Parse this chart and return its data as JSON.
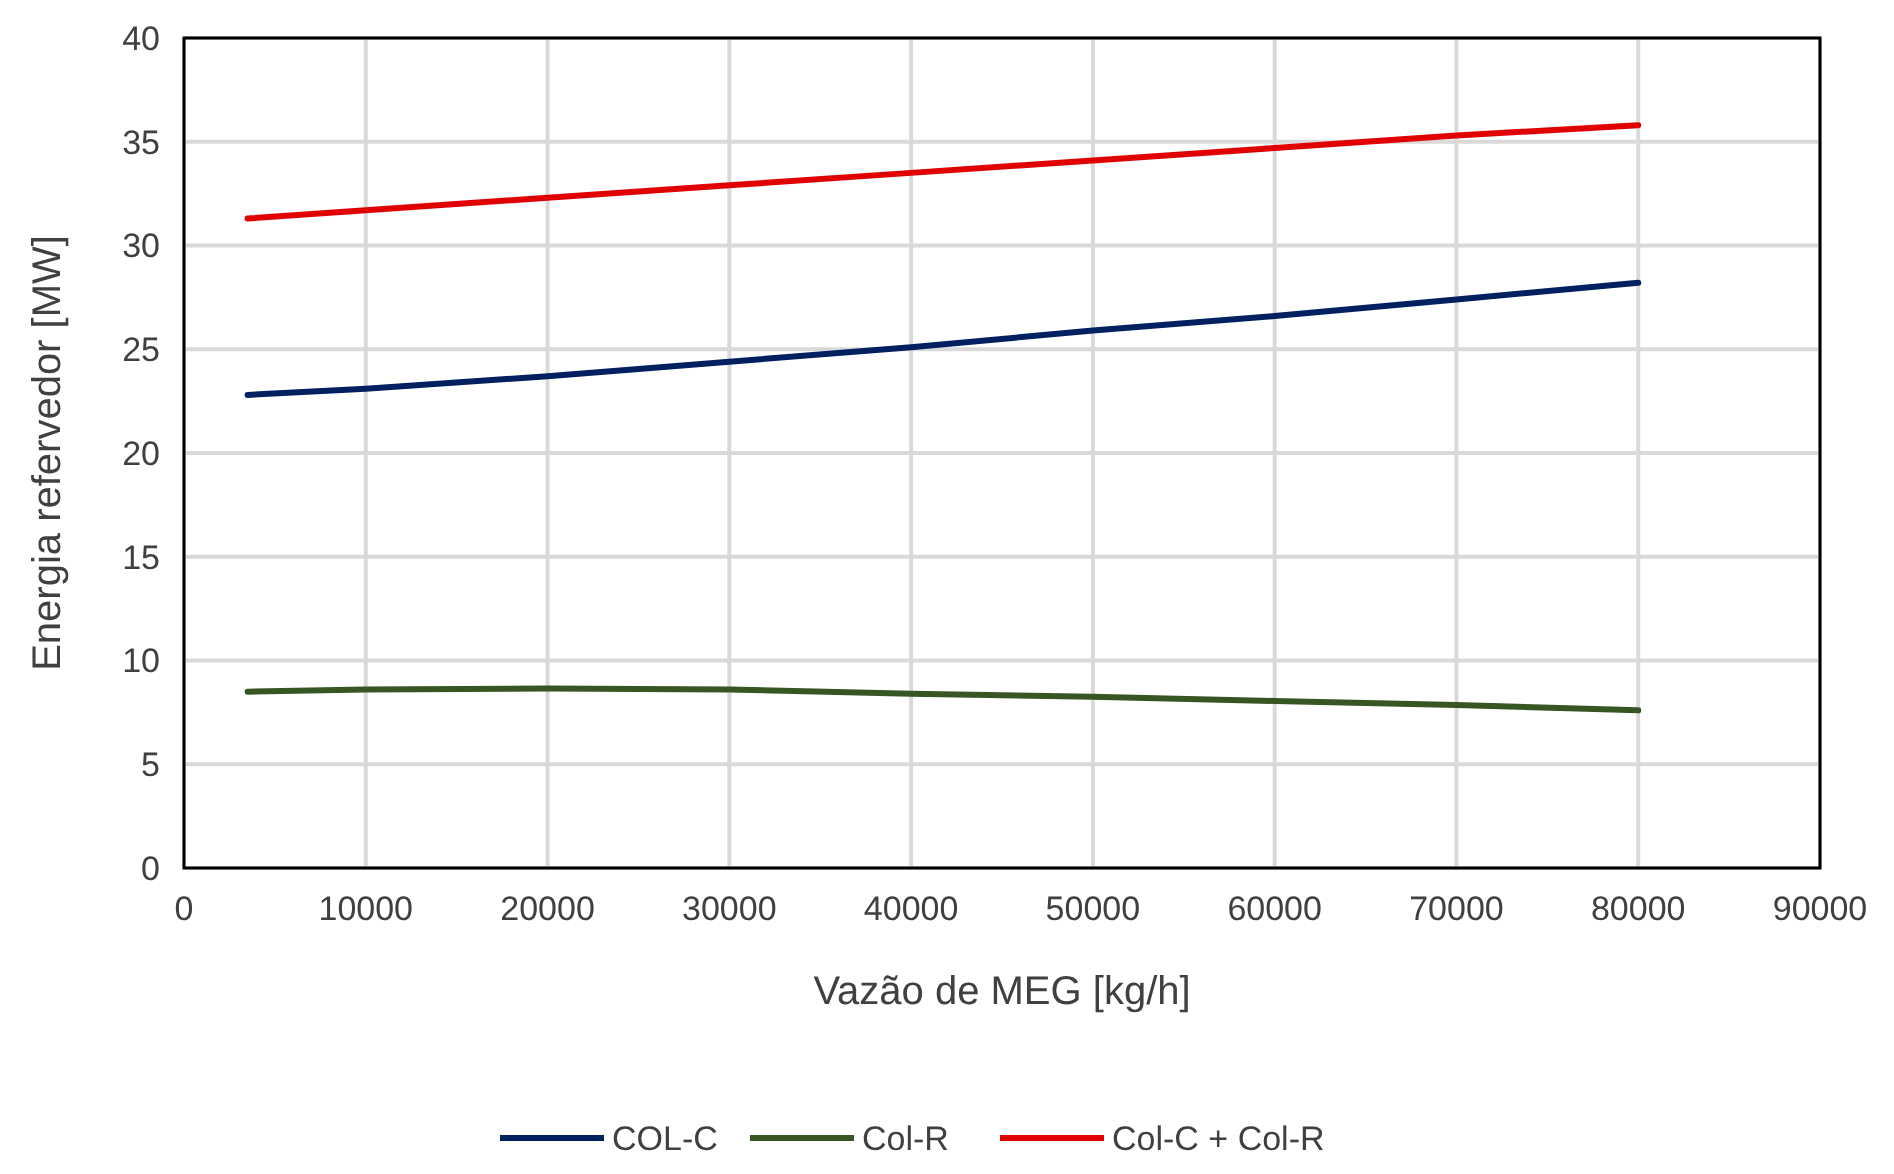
{
  "chart_data": {
    "type": "line",
    "xlabel": "Vazão de MEG [kg/h]",
    "ylabel": "Energia refervedor [MW]",
    "xlim": [
      0,
      90000
    ],
    "xticks": [
      0,
      10000,
      20000,
      30000,
      40000,
      50000,
      60000,
      70000,
      80000,
      90000
    ],
    "ylim": [
      0,
      40
    ],
    "yticks": [
      0,
      5,
      10,
      15,
      20,
      25,
      30,
      35,
      40
    ],
    "grid": true,
    "legend": "bottom",
    "marker": "none",
    "line_style": "solid",
    "x": [
      3500,
      10000,
      20000,
      30000,
      40000,
      50000,
      60000,
      70000,
      80000
    ],
    "series": [
      {
        "name": "COL-C",
        "color": "#002060",
        "values": [
          22.8,
          23.1,
          23.7,
          24.4,
          25.1,
          25.9,
          26.6,
          27.4,
          28.2
        ]
      },
      {
        "name": "Col-R",
        "color": "#375623",
        "values": [
          8.5,
          8.6,
          8.65,
          8.6,
          8.4,
          8.25,
          8.05,
          7.85,
          7.6
        ]
      },
      {
        "name": "Col-C + Col-R",
        "color": "#e00000",
        "values": [
          31.3,
          31.7,
          32.3,
          32.9,
          33.5,
          34.1,
          34.7,
          35.3,
          35.8
        ]
      }
    ]
  }
}
